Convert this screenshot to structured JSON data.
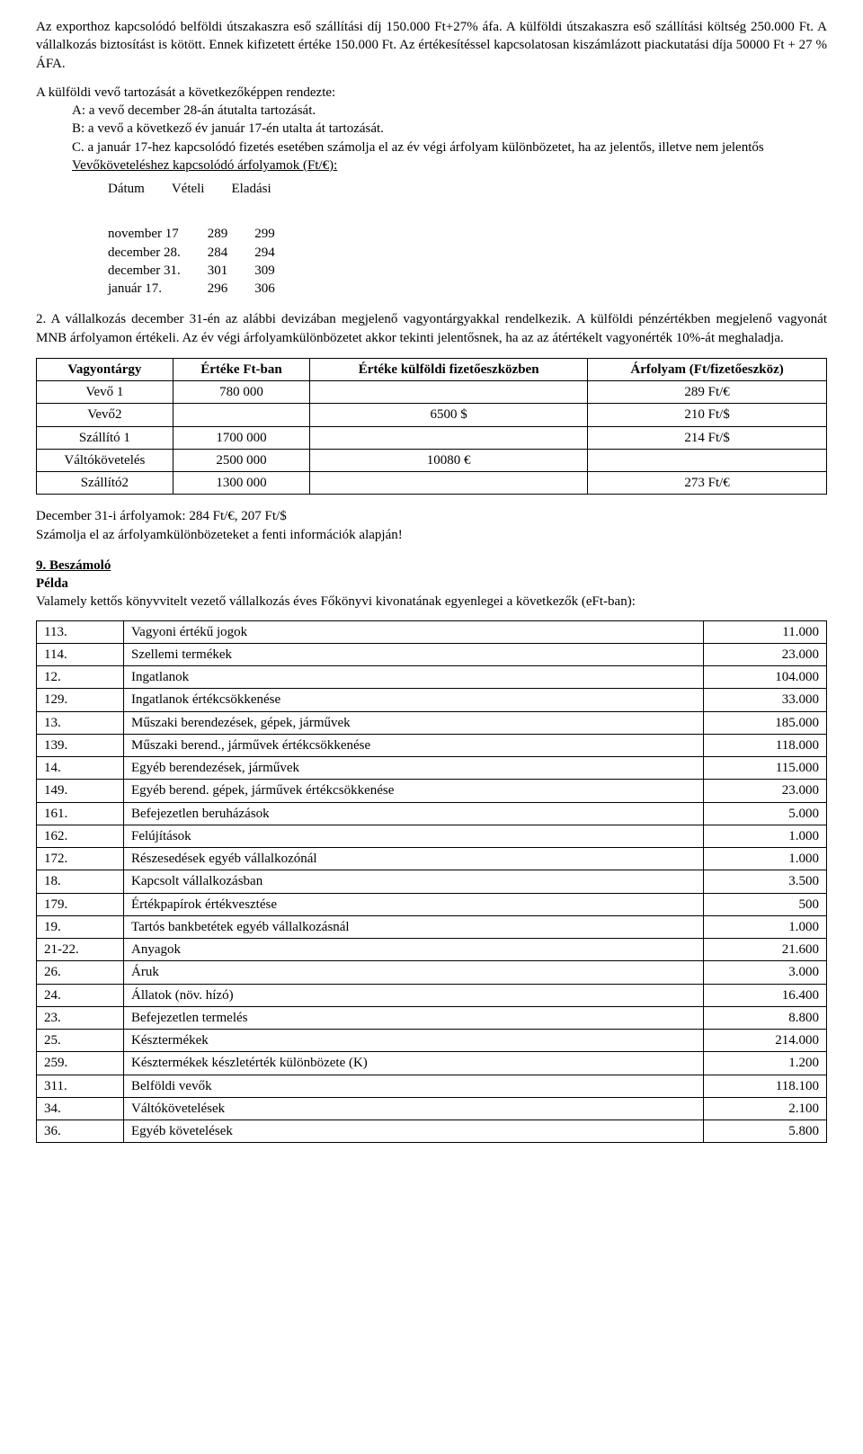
{
  "p1": "Az exporthoz kapcsolódó belföldi útszakaszra eső szállítási díj 150.000 Ft+27% áfa. A külföldi útszakaszra eső szállítási költség 250.000 Ft. A vállalkozás biztosítást is kötött. Ennek kifizetett értéke 150.000 Ft. Az értékesítéssel kapcsolatosan kiszámlázott piackutatási díja 50000 Ft + 27 % ÁFA.",
  "p2_lead": "A külföldi vevő tartozását a következőképpen rendezte:",
  "p2_a": "A: a vevő december 28-án átutalta tartozását.",
  "p2_b": "B: a vevő a következő év január 17-én utalta át tartozását.",
  "p2_c": "C. a január 17-hez kapcsolódó fizetés esetében számolja el az év végi árfolyam különbözetet, ha az jelentős, illetve nem jelentős",
  "p2_link": "Vevőköveteléshez kapcsolódó árfolyamok (Ft/€):",
  "rates_header": {
    "c1": "Dátum",
    "c2": "Vételi",
    "c3": "Eladási"
  },
  "rates_rows": [
    {
      "d": "november 17",
      "v": "289",
      "e": "299"
    },
    {
      "d": "december 28.",
      "v": "284",
      "e": "294"
    },
    {
      "d": "december 31.",
      "v": "301",
      "e": "309"
    },
    {
      "d": "január 17.",
      "v": "296",
      "e": "306"
    }
  ],
  "p3": "2. A vállalkozás december 31-én az alábbi devizában megjelenő vagyontárgyakkal rendelkezik. A külföldi pénzértékben megjelenő vagyonát MNB árfolyamon értékeli. Az év végi árfolyamkülönbözetet akkor tekinti jelentősnek, ha az az átértékelt vagyonérték 10%-át meghaladja.",
  "assets_header": {
    "c1": "Vagyontárgy",
    "c2": "Értéke Ft-ban",
    "c3": "Értéke külföldi fizetőeszközben",
    "c4": "Árfolyam (Ft/fizetőeszköz)"
  },
  "assets_rows": [
    {
      "n": "Vevő 1",
      "ft": "780 000",
      "fx": "",
      "r": "289 Ft/€"
    },
    {
      "n": "Vevő2",
      "ft": "",
      "fx": "6500 $",
      "r": "210 Ft/$"
    },
    {
      "n": "Szállító 1",
      "ft": "1700 000",
      "fx": "",
      "r": "214 Ft/$"
    },
    {
      "n": "Váltókövetelés",
      "ft": "2500 000",
      "fx": "10080 €",
      "r": ""
    },
    {
      "n": "Szállító2",
      "ft": "1300 000",
      "fx": "",
      "r": "273 Ft/€"
    }
  ],
  "p4a": "December 31-i árfolyamok: 284 Ft/€, 207 Ft/$",
  "p4b": "Számolja el az árfolyamkülönbözeteket a fenti információk alapján!",
  "sect9_title": "9. Beszámoló",
  "sect9_sub": "Példa",
  "sect9_lead": "Valamely kettős könyvvitelt vezető vállalkozás éves Főkönyvi kivonatának egyenlegei a következők (eFt-ban):",
  "ledger_rows": [
    {
      "n": "113.",
      "name": "Vagyoni értékű jogok",
      "v": "11.000"
    },
    {
      "n": "114.",
      "name": "Szellemi termékek",
      "v": "23.000"
    },
    {
      "n": "12.",
      "name": "Ingatlanok",
      "v": "104.000"
    },
    {
      "n": "129.",
      "name": "Ingatlanok értékcsökkenése",
      "v": "33.000"
    },
    {
      "n": "13.",
      "name": "Műszaki berendezések, gépek, járművek",
      "v": "185.000"
    },
    {
      "n": "139.",
      "name": "Műszaki berend., járművek értékcsökkenése",
      "v": "118.000"
    },
    {
      "n": "14.",
      "name": "Egyéb berendezések, járművek",
      "v": "115.000"
    },
    {
      "n": "149.",
      "name": "Egyéb berend. gépek, járművek értékcsökkenése",
      "v": "23.000"
    },
    {
      "n": "161.",
      "name": "Befejezetlen beruházások",
      "v": "5.000"
    },
    {
      "n": "162.",
      "name": "Felújítások",
      "v": "1.000"
    },
    {
      "n": "172.",
      "name": "Részesedések egyéb vállalkozónál",
      "v": "1.000"
    },
    {
      "n": "18.",
      "name": "Kapcsolt vállalkozásban",
      "v": "3.500"
    },
    {
      "n": "179.",
      "name": "Értékpapírok értékvesztése",
      "v": "500"
    },
    {
      "n": "19.",
      "name": "Tartós bankbetétek egyéb vállalkozásnál",
      "v": "1.000"
    },
    {
      "n": "21-22.",
      "name": "Anyagok",
      "v": "21.600"
    },
    {
      "n": "26.",
      "name": "Áruk",
      "v": "3.000"
    },
    {
      "n": "24.",
      "name": "Állatok (növ. hízó)",
      "v": "16.400"
    },
    {
      "n": "23.",
      "name": "Befejezetlen termelés",
      "v": "8.800"
    },
    {
      "n": "25.",
      "name": "Késztermékek",
      "v": "214.000"
    },
    {
      "n": "259.",
      "name": "Késztermékek készletérték különbözete      (K)",
      "v": "1.200"
    },
    {
      "n": "311.",
      "name": "Belföldi vevők",
      "v": "118.100"
    },
    {
      "n": "34.",
      "name": "Váltókövetelések",
      "v": "2.100"
    },
    {
      "n": "36.",
      "name": "Egyéb követelések",
      "v": "5.800"
    }
  ]
}
